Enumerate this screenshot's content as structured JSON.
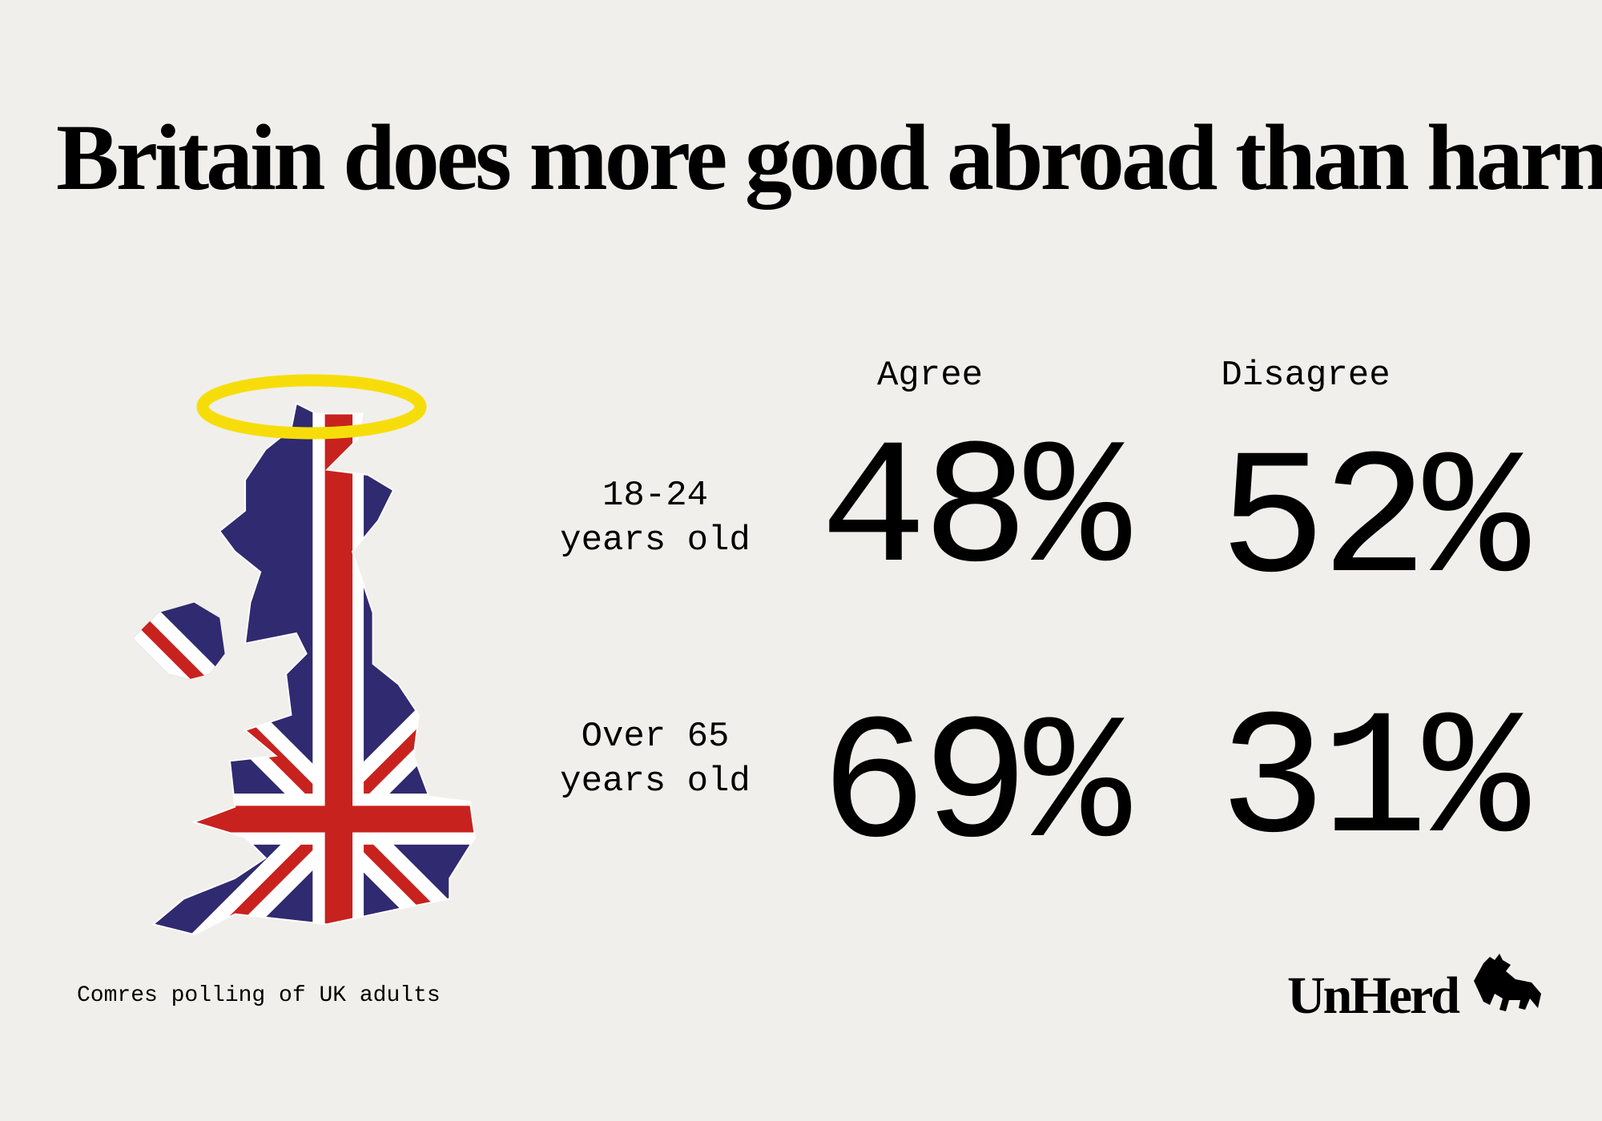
{
  "title": "Britain does more good abroad than harm",
  "columns": [
    "Agree",
    "Disagree"
  ],
  "rows": [
    {
      "label": [
        "18-24",
        "years old"
      ],
      "values": [
        "48%",
        "52%"
      ]
    },
    {
      "label": [
        "Over 65",
        "years old"
      ],
      "values": [
        "69%",
        "31%"
      ]
    }
  ],
  "source": "Comres polling of UK adults",
  "logo": "UnHerd"
}
